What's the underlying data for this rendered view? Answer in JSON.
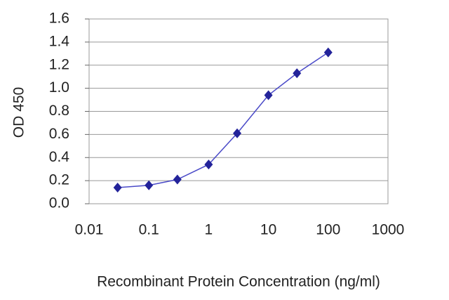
{
  "chart_data": {
    "type": "line",
    "xlabel": "Recombinant Protein Concentration (ng/ml)",
    "ylabel": "OD 450",
    "x": [
      0.03,
      0.1,
      0.3,
      1,
      3,
      10,
      30,
      100
    ],
    "series": [
      {
        "color": "#4a4ac8",
        "marker_color": "#23239a",
        "values": [
          0.14,
          0.16,
          0.21,
          0.34,
          0.61,
          0.94,
          1.13,
          1.31
        ]
      }
    ],
    "xlim": [
      0.01,
      1000
    ],
    "xticks": [
      0.01,
      0.1,
      1,
      10,
      100,
      1000
    ],
    "xscale": "log",
    "ylim": [
      0,
      1.6
    ],
    "yticks": [
      {
        "value": 0,
        "label": "0.0"
      },
      0.2,
      0.4,
      0.6,
      0.8,
      {
        "value": 1,
        "label": "1.0"
      },
      1.2,
      1.4,
      1.6
    ],
    "grid": true
  }
}
